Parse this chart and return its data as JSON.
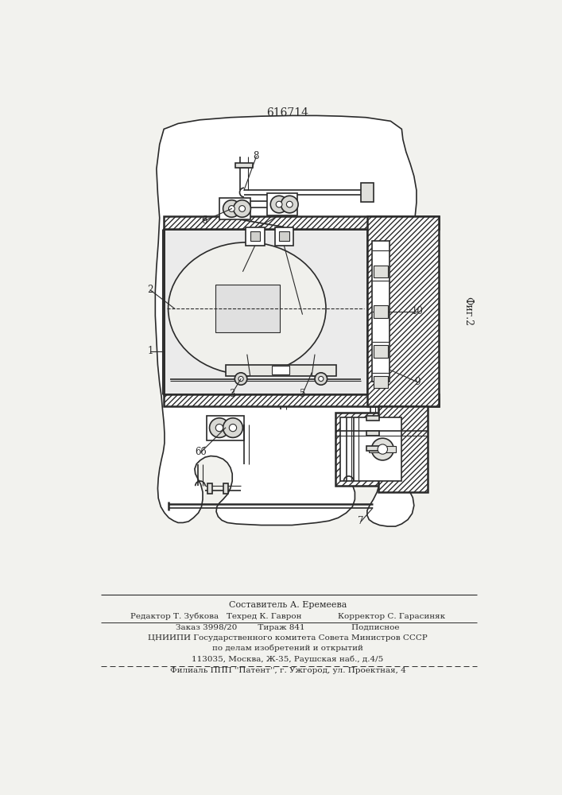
{
  "title": "616714",
  "fig2_label": "Фиг.2",
  "bg_color": "#f2f2ee",
  "line_color": "#2a2a2a",
  "footer_lines": [
    "Составитель А. Еремеева",
    "Редактор Т. Зубкова   Техред К. Гаврон              Корректор С. Гарасиняк",
    "Заказ 3998/20        Тираж 841                  Подписное",
    "ЦНИИПИ Государственного комитета Совета Министров СССР",
    "по делам изобретений и открытий",
    "113035, Москва, Ж-35, Раушская наб., д.4/5",
    "Филиаль ППП ''Патент'', г. Ужгород, ул. Проектная, 4"
  ]
}
